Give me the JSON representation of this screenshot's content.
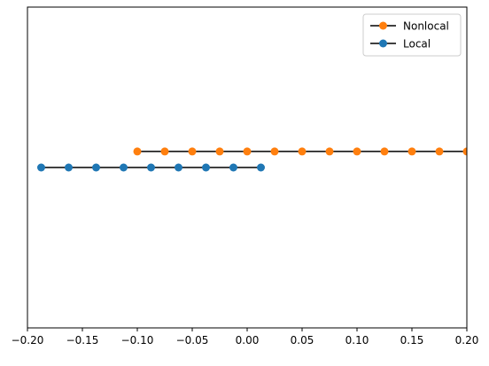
{
  "chart_data": {
    "type": "line",
    "xlim": [
      -0.2,
      0.2
    ],
    "ylim": [
      -1,
      1
    ],
    "yaxis_visible": false,
    "grid": false,
    "legend_placement": "top-right",
    "xticks": [
      {
        "value": -0.2,
        "label": "−0.20"
      },
      {
        "value": -0.15,
        "label": "−0.15"
      },
      {
        "value": -0.1,
        "label": "−0.10"
      },
      {
        "value": -0.05,
        "label": "−0.05"
      },
      {
        "value": 0.0,
        "label": "0.00"
      },
      {
        "value": 0.05,
        "label": "0.05"
      },
      {
        "value": 0.1,
        "label": "0.10"
      },
      {
        "value": 0.15,
        "label": "0.15"
      },
      {
        "value": 0.2,
        "label": "0.20"
      }
    ],
    "series": [
      {
        "name": "Nonlocal",
        "line_color": "#000000",
        "marker_color": "#ff7f0e",
        "y": 0.1,
        "x": [
          -0.1,
          -0.075,
          -0.05,
          -0.025,
          0.0,
          0.025,
          0.05,
          0.075,
          0.1,
          0.125,
          0.15,
          0.175,
          0.2
        ]
      },
      {
        "name": "Local",
        "line_color": "#000000",
        "marker_color": "#1f77b4",
        "y": 0.0,
        "x": [
          -0.1875,
          -0.1625,
          -0.1375,
          -0.1125,
          -0.0875,
          -0.0625,
          -0.0375,
          -0.0125,
          0.0125
        ]
      }
    ]
  }
}
